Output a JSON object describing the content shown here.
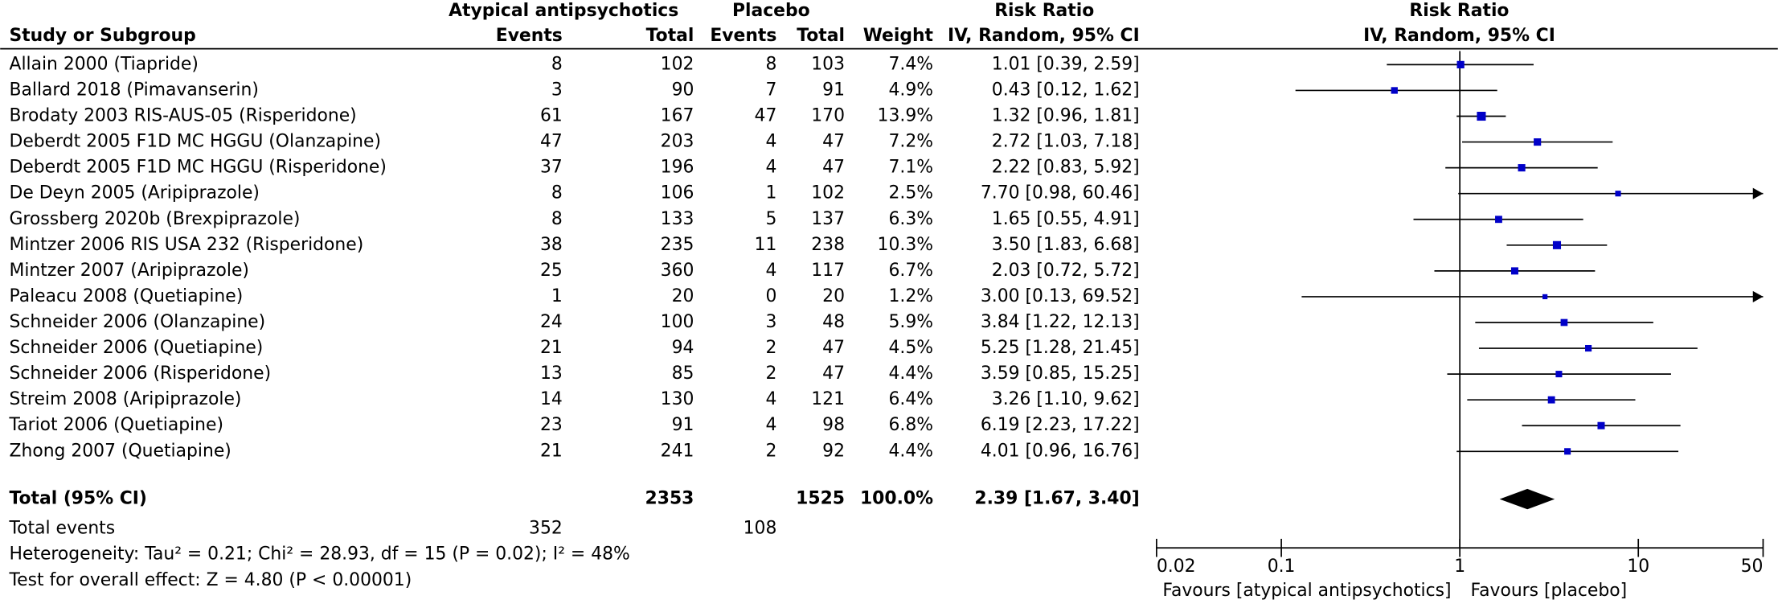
{
  "chart_data": {
    "type": "forest",
    "headers": {
      "study": "Study or Subgroup",
      "group1": "Atypical antipsychotics",
      "group2": "Placebo",
      "events": "Events",
      "total": "Total",
      "weight": "Weight",
      "title": "Risk Ratio",
      "subtitle": "IV, Random, 95% CI"
    },
    "studies": [
      "Allain 2000 (Tiapride)",
      "Ballard 2018 (Pimavanserin)",
      "Brodaty 2003 RIS-AUS-05 (Risperidone)",
      "Deberdt 2005 F1D MC HGGU (Olanzapine)",
      "Deberdt 2005 F1D MC HGGU (Risperidone)",
      "De Deyn 2005 (Aripiprazole)",
      "Grossberg 2020b (Brexpiprazole)",
      "Mintzer 2006 RIS USA 232 (Risperidone)",
      "Mintzer 2007 (Aripiprazole)",
      "Paleacu 2008 (Quetiapine)",
      "Schneider 2006 (Olanzapine)",
      "Schneider 2006 (Quetiapine)",
      "Schneider 2006 (Risperidone)",
      "Streim 2008 (Aripiprazole)",
      "Tariot 2006 (Quetiapine)",
      "Zhong 2007 (Quetiapine)"
    ],
    "events1": [
      8,
      3,
      61,
      47,
      37,
      8,
      8,
      38,
      25,
      1,
      24,
      21,
      13,
      14,
      23,
      21
    ],
    "total1": [
      102,
      90,
      167,
      203,
      196,
      106,
      133,
      235,
      360,
      20,
      100,
      94,
      85,
      130,
      91,
      241
    ],
    "events2": [
      8,
      7,
      47,
      4,
      4,
      1,
      5,
      11,
      4,
      0,
      3,
      2,
      2,
      4,
      4,
      2
    ],
    "total2": [
      103,
      91,
      170,
      47,
      47,
      102,
      137,
      238,
      117,
      20,
      48,
      47,
      47,
      121,
      98,
      92
    ],
    "weights": [
      7.4,
      4.9,
      13.9,
      7.2,
      7.1,
      2.5,
      6.3,
      10.3,
      6.7,
      1.2,
      5.9,
      4.5,
      4.4,
      6.4,
      6.8,
      4.4
    ],
    "weight_labels": [
      "7.4%",
      "4.9%",
      "13.9%",
      "7.2%",
      "7.1%",
      "2.5%",
      "6.3%",
      "10.3%",
      "6.7%",
      "1.2%",
      "5.9%",
      "4.5%",
      "4.4%",
      "6.4%",
      "6.8%",
      "4.4%"
    ],
    "values": [
      1.01,
      0.43,
      1.32,
      2.72,
      2.22,
      7.7,
      1.65,
      3.5,
      2.03,
      3.0,
      3.84,
      5.25,
      3.59,
      3.26,
      6.19,
      4.01
    ],
    "lower": [
      0.39,
      0.12,
      0.96,
      1.03,
      0.83,
      0.98,
      0.55,
      1.83,
      0.72,
      0.13,
      1.22,
      1.28,
      0.85,
      1.1,
      2.23,
      0.96
    ],
    "upper": [
      2.59,
      1.62,
      1.81,
      7.18,
      5.92,
      60.46,
      4.91,
      6.68,
      5.72,
      69.52,
      12.13,
      21.45,
      15.25,
      9.62,
      17.22,
      16.76
    ],
    "value_labels": [
      "1.01 [0.39, 2.59]",
      "0.43 [0.12, 1.62]",
      "1.32 [0.96, 1.81]",
      "2.72 [1.03, 7.18]",
      "2.22 [0.83, 5.92]",
      "7.70 [0.98, 60.46]",
      "1.65 [0.55, 4.91]",
      "3.50 [1.83, 6.68]",
      "2.03 [0.72, 5.72]",
      "3.00 [0.13, 69.52]",
      "3.84 [1.22, 12.13]",
      "5.25 [1.28, 21.45]",
      "3.59 [0.85, 15.25]",
      "3.26 [1.10, 9.62]",
      "6.19 [2.23, 17.22]",
      "4.01 [0.96, 16.76]"
    ],
    "total": {
      "label": "Total (95% CI)",
      "total1": 2353,
      "total2": 1525,
      "weight_label": "100.0%",
      "value": 2.39,
      "lower": 1.67,
      "upper": 3.4,
      "value_label": "2.39 [1.67, 3.40]"
    },
    "total_events": {
      "label": "Total events",
      "events1": 352,
      "events2": 108
    },
    "heterogeneity": "Heterogeneity: Tau² = 0.21; Chi² = 28.93, df = 15 (P = 0.02); I² = 48%",
    "overall_effect": "Test for overall effect: Z = 4.80 (P < 0.00001)",
    "xlim": [
      0.02,
      50
    ],
    "xticks": [
      0.02,
      0.1,
      1,
      10,
      50
    ],
    "log_x": true,
    "favours_left": "Favours [atypical antipsychotics]",
    "favours_right": "Favours [placebo]",
    "color": "#0000c8"
  }
}
